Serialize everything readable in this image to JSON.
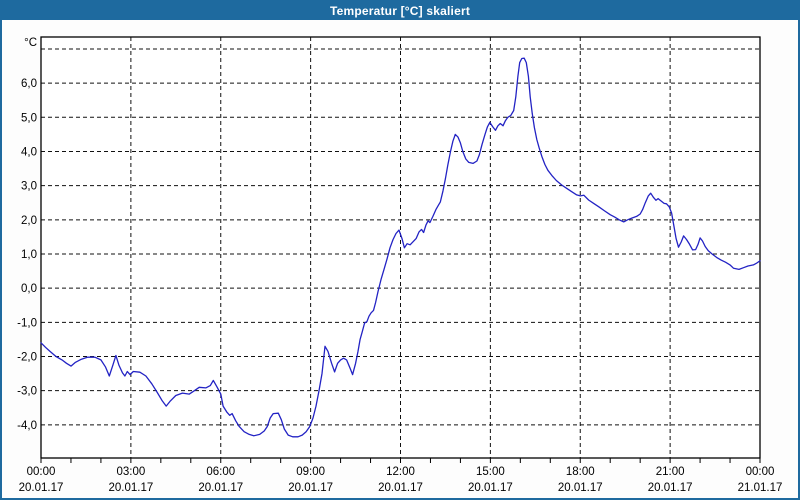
{
  "window": {
    "title": "Temperatur [°C] skaliert",
    "titlebar_color": "#1e6a9f",
    "border_color": "#1e6a9f"
  },
  "chart_data": {
    "type": "line",
    "title": "Temperatur [°C] skaliert",
    "unit_label": "°C",
    "xlabel": "",
    "ylabel": "°C",
    "x_range_hours": [
      0,
      24
    ],
    "ylim": [
      -4.97,
      7.35
    ],
    "grid": "dashed",
    "grid_color": "#111111",
    "axis_color": "#000000",
    "text_color": "#000000",
    "minor_tick_every_hours": 1,
    "y_ticks": [
      {
        "value": 7,
        "label": ""
      },
      {
        "value": 6,
        "label": "6,0"
      },
      {
        "value": 5,
        "label": "5,0"
      },
      {
        "value": 4,
        "label": "4,0"
      },
      {
        "value": 3,
        "label": "3,0"
      },
      {
        "value": 2,
        "label": "2,0"
      },
      {
        "value": 1,
        "label": "1,0"
      },
      {
        "value": 0,
        "label": "0,0"
      },
      {
        "value": -1,
        "label": "-1,0"
      },
      {
        "value": -2,
        "label": "-2,0"
      },
      {
        "value": -3,
        "label": "-3,0"
      },
      {
        "value": -4,
        "label": "-4,0"
      }
    ],
    "x_ticks": [
      {
        "hour": 0,
        "time": "00:00",
        "date": "20.01.17"
      },
      {
        "hour": 3,
        "time": "03:00",
        "date": "20.01.17"
      },
      {
        "hour": 6,
        "time": "06:00",
        "date": "20.01.17"
      },
      {
        "hour": 9,
        "time": "09:00",
        "date": "20.01.17"
      },
      {
        "hour": 12,
        "time": "12:00",
        "date": "20.01.17"
      },
      {
        "hour": 15,
        "time": "15:00",
        "date": "20.01.17"
      },
      {
        "hour": 18,
        "time": "18:00",
        "date": "20.01.17"
      },
      {
        "hour": 21,
        "time": "21:00",
        "date": "20.01.17"
      },
      {
        "hour": 24,
        "time": "00:00",
        "date": "21.01.17"
      }
    ],
    "series": [
      {
        "name": "Temperatur",
        "color": "#2323c4",
        "points": [
          [
            0.0,
            -1.6
          ],
          [
            0.15,
            -1.73
          ],
          [
            0.3,
            -1.85
          ],
          [
            0.5,
            -2.0
          ],
          [
            0.7,
            -2.1
          ],
          [
            0.85,
            -2.2
          ],
          [
            1.0,
            -2.28
          ],
          [
            1.15,
            -2.17
          ],
          [
            1.35,
            -2.08
          ],
          [
            1.55,
            -2.02
          ],
          [
            1.8,
            -2.02
          ],
          [
            2.0,
            -2.1
          ],
          [
            2.15,
            -2.3
          ],
          [
            2.28,
            -2.57
          ],
          [
            2.4,
            -2.25
          ],
          [
            2.5,
            -1.97
          ],
          [
            2.6,
            -2.25
          ],
          [
            2.72,
            -2.48
          ],
          [
            2.8,
            -2.57
          ],
          [
            2.88,
            -2.44
          ],
          [
            2.97,
            -2.53
          ],
          [
            3.08,
            -2.44
          ],
          [
            3.3,
            -2.46
          ],
          [
            3.5,
            -2.57
          ],
          [
            3.7,
            -2.8
          ],
          [
            3.88,
            -3.05
          ],
          [
            4.05,
            -3.3
          ],
          [
            4.18,
            -3.45
          ],
          [
            4.32,
            -3.3
          ],
          [
            4.5,
            -3.14
          ],
          [
            4.72,
            -3.07
          ],
          [
            4.95,
            -3.1
          ],
          [
            5.12,
            -3.0
          ],
          [
            5.28,
            -2.9
          ],
          [
            5.5,
            -2.92
          ],
          [
            5.65,
            -2.85
          ],
          [
            5.75,
            -2.7
          ],
          [
            5.88,
            -2.9
          ],
          [
            6.0,
            -3.1
          ],
          [
            6.08,
            -3.45
          ],
          [
            6.2,
            -3.62
          ],
          [
            6.3,
            -3.72
          ],
          [
            6.38,
            -3.67
          ],
          [
            6.5,
            -3.88
          ],
          [
            6.62,
            -4.05
          ],
          [
            6.78,
            -4.2
          ],
          [
            6.95,
            -4.28
          ],
          [
            7.1,
            -4.32
          ],
          [
            7.3,
            -4.28
          ],
          [
            7.45,
            -4.18
          ],
          [
            7.55,
            -4.05
          ],
          [
            7.65,
            -3.8
          ],
          [
            7.75,
            -3.67
          ],
          [
            7.92,
            -3.66
          ],
          [
            8.02,
            -3.85
          ],
          [
            8.12,
            -4.12
          ],
          [
            8.25,
            -4.3
          ],
          [
            8.4,
            -4.35
          ],
          [
            8.58,
            -4.35
          ],
          [
            8.72,
            -4.3
          ],
          [
            8.85,
            -4.2
          ],
          [
            8.97,
            -4.05
          ],
          [
            9.08,
            -3.8
          ],
          [
            9.18,
            -3.45
          ],
          [
            9.28,
            -3.0
          ],
          [
            9.38,
            -2.5
          ],
          [
            9.48,
            -1.7
          ],
          [
            9.58,
            -1.85
          ],
          [
            9.7,
            -2.2
          ],
          [
            9.8,
            -2.45
          ],
          [
            9.9,
            -2.2
          ],
          [
            10.0,
            -2.1
          ],
          [
            10.1,
            -2.05
          ],
          [
            10.2,
            -2.1
          ],
          [
            10.32,
            -2.35
          ],
          [
            10.4,
            -2.53
          ],
          [
            10.5,
            -2.2
          ],
          [
            10.58,
            -1.85
          ],
          [
            10.65,
            -1.5
          ],
          [
            10.72,
            -1.28
          ],
          [
            10.8,
            -1.02
          ],
          [
            10.88,
            -0.98
          ],
          [
            10.95,
            -0.82
          ],
          [
            11.02,
            -0.72
          ],
          [
            11.1,
            -0.65
          ],
          [
            11.17,
            -0.42
          ],
          [
            11.25,
            -0.1
          ],
          [
            11.35,
            0.25
          ],
          [
            11.45,
            0.55
          ],
          [
            11.55,
            0.85
          ],
          [
            11.65,
            1.18
          ],
          [
            11.75,
            1.42
          ],
          [
            11.85,
            1.6
          ],
          [
            11.95,
            1.7
          ],
          [
            12.05,
            1.45
          ],
          [
            12.13,
            1.18
          ],
          [
            12.22,
            1.3
          ],
          [
            12.32,
            1.27
          ],
          [
            12.42,
            1.36
          ],
          [
            12.52,
            1.45
          ],
          [
            12.62,
            1.65
          ],
          [
            12.7,
            1.72
          ],
          [
            12.77,
            1.63
          ],
          [
            12.85,
            1.85
          ],
          [
            12.92,
            1.97
          ],
          [
            12.98,
            1.92
          ],
          [
            13.08,
            2.1
          ],
          [
            13.18,
            2.3
          ],
          [
            13.27,
            2.43
          ],
          [
            13.33,
            2.52
          ],
          [
            13.42,
            2.85
          ],
          [
            13.5,
            3.2
          ],
          [
            13.58,
            3.6
          ],
          [
            13.67,
            4.0
          ],
          [
            13.75,
            4.3
          ],
          [
            13.83,
            4.5
          ],
          [
            13.92,
            4.42
          ],
          [
            14.0,
            4.25
          ],
          [
            14.08,
            4.0
          ],
          [
            14.18,
            3.78
          ],
          [
            14.28,
            3.68
          ],
          [
            14.42,
            3.65
          ],
          [
            14.55,
            3.72
          ],
          [
            14.63,
            3.9
          ],
          [
            14.72,
            4.2
          ],
          [
            14.82,
            4.5
          ],
          [
            14.9,
            4.72
          ],
          [
            14.98,
            4.85
          ],
          [
            15.08,
            4.72
          ],
          [
            15.17,
            4.62
          ],
          [
            15.25,
            4.75
          ],
          [
            15.33,
            4.82
          ],
          [
            15.42,
            4.75
          ],
          [
            15.5,
            4.9
          ],
          [
            15.58,
            5.0
          ],
          [
            15.68,
            5.05
          ],
          [
            15.78,
            5.2
          ],
          [
            15.85,
            5.6
          ],
          [
            15.92,
            6.2
          ],
          [
            15.98,
            6.6
          ],
          [
            16.05,
            6.72
          ],
          [
            16.13,
            6.73
          ],
          [
            16.2,
            6.6
          ],
          [
            16.27,
            6.2
          ],
          [
            16.33,
            5.6
          ],
          [
            16.4,
            5.1
          ],
          [
            16.47,
            4.7
          ],
          [
            16.55,
            4.35
          ],
          [
            16.63,
            4.1
          ],
          [
            16.72,
            3.85
          ],
          [
            16.82,
            3.62
          ],
          [
            16.92,
            3.45
          ],
          [
            17.05,
            3.3
          ],
          [
            17.2,
            3.15
          ],
          [
            17.38,
            3.02
          ],
          [
            17.55,
            2.92
          ],
          [
            17.72,
            2.82
          ],
          [
            17.88,
            2.73
          ],
          [
            18.0,
            2.7
          ],
          [
            18.12,
            2.72
          ],
          [
            18.28,
            2.58
          ],
          [
            18.45,
            2.48
          ],
          [
            18.62,
            2.38
          ],
          [
            18.8,
            2.27
          ],
          [
            19.0,
            2.15
          ],
          [
            19.15,
            2.08
          ],
          [
            19.3,
            2.0
          ],
          [
            19.45,
            1.94
          ],
          [
            19.58,
            2.0
          ],
          [
            19.72,
            2.05
          ],
          [
            19.88,
            2.1
          ],
          [
            20.0,
            2.17
          ],
          [
            20.08,
            2.3
          ],
          [
            20.17,
            2.5
          ],
          [
            20.27,
            2.7
          ],
          [
            20.35,
            2.78
          ],
          [
            20.45,
            2.65
          ],
          [
            20.53,
            2.57
          ],
          [
            20.6,
            2.62
          ],
          [
            20.7,
            2.55
          ],
          [
            20.8,
            2.48
          ],
          [
            20.88,
            2.47
          ],
          [
            20.97,
            2.38
          ],
          [
            21.05,
            2.2
          ],
          [
            21.12,
            1.85
          ],
          [
            21.2,
            1.45
          ],
          [
            21.28,
            1.2
          ],
          [
            21.37,
            1.35
          ],
          [
            21.45,
            1.53
          ],
          [
            21.55,
            1.42
          ],
          [
            21.65,
            1.28
          ],
          [
            21.75,
            1.12
          ],
          [
            21.85,
            1.13
          ],
          [
            21.93,
            1.28
          ],
          [
            22.0,
            1.47
          ],
          [
            22.08,
            1.38
          ],
          [
            22.17,
            1.22
          ],
          [
            22.27,
            1.1
          ],
          [
            22.4,
            1.0
          ],
          [
            22.55,
            0.9
          ],
          [
            22.7,
            0.82
          ],
          [
            22.85,
            0.76
          ],
          [
            23.0,
            0.68
          ],
          [
            23.12,
            0.58
          ],
          [
            23.3,
            0.55
          ],
          [
            23.45,
            0.6
          ],
          [
            23.6,
            0.65
          ],
          [
            23.78,
            0.68
          ],
          [
            23.9,
            0.74
          ],
          [
            24.0,
            0.8
          ]
        ]
      }
    ]
  }
}
